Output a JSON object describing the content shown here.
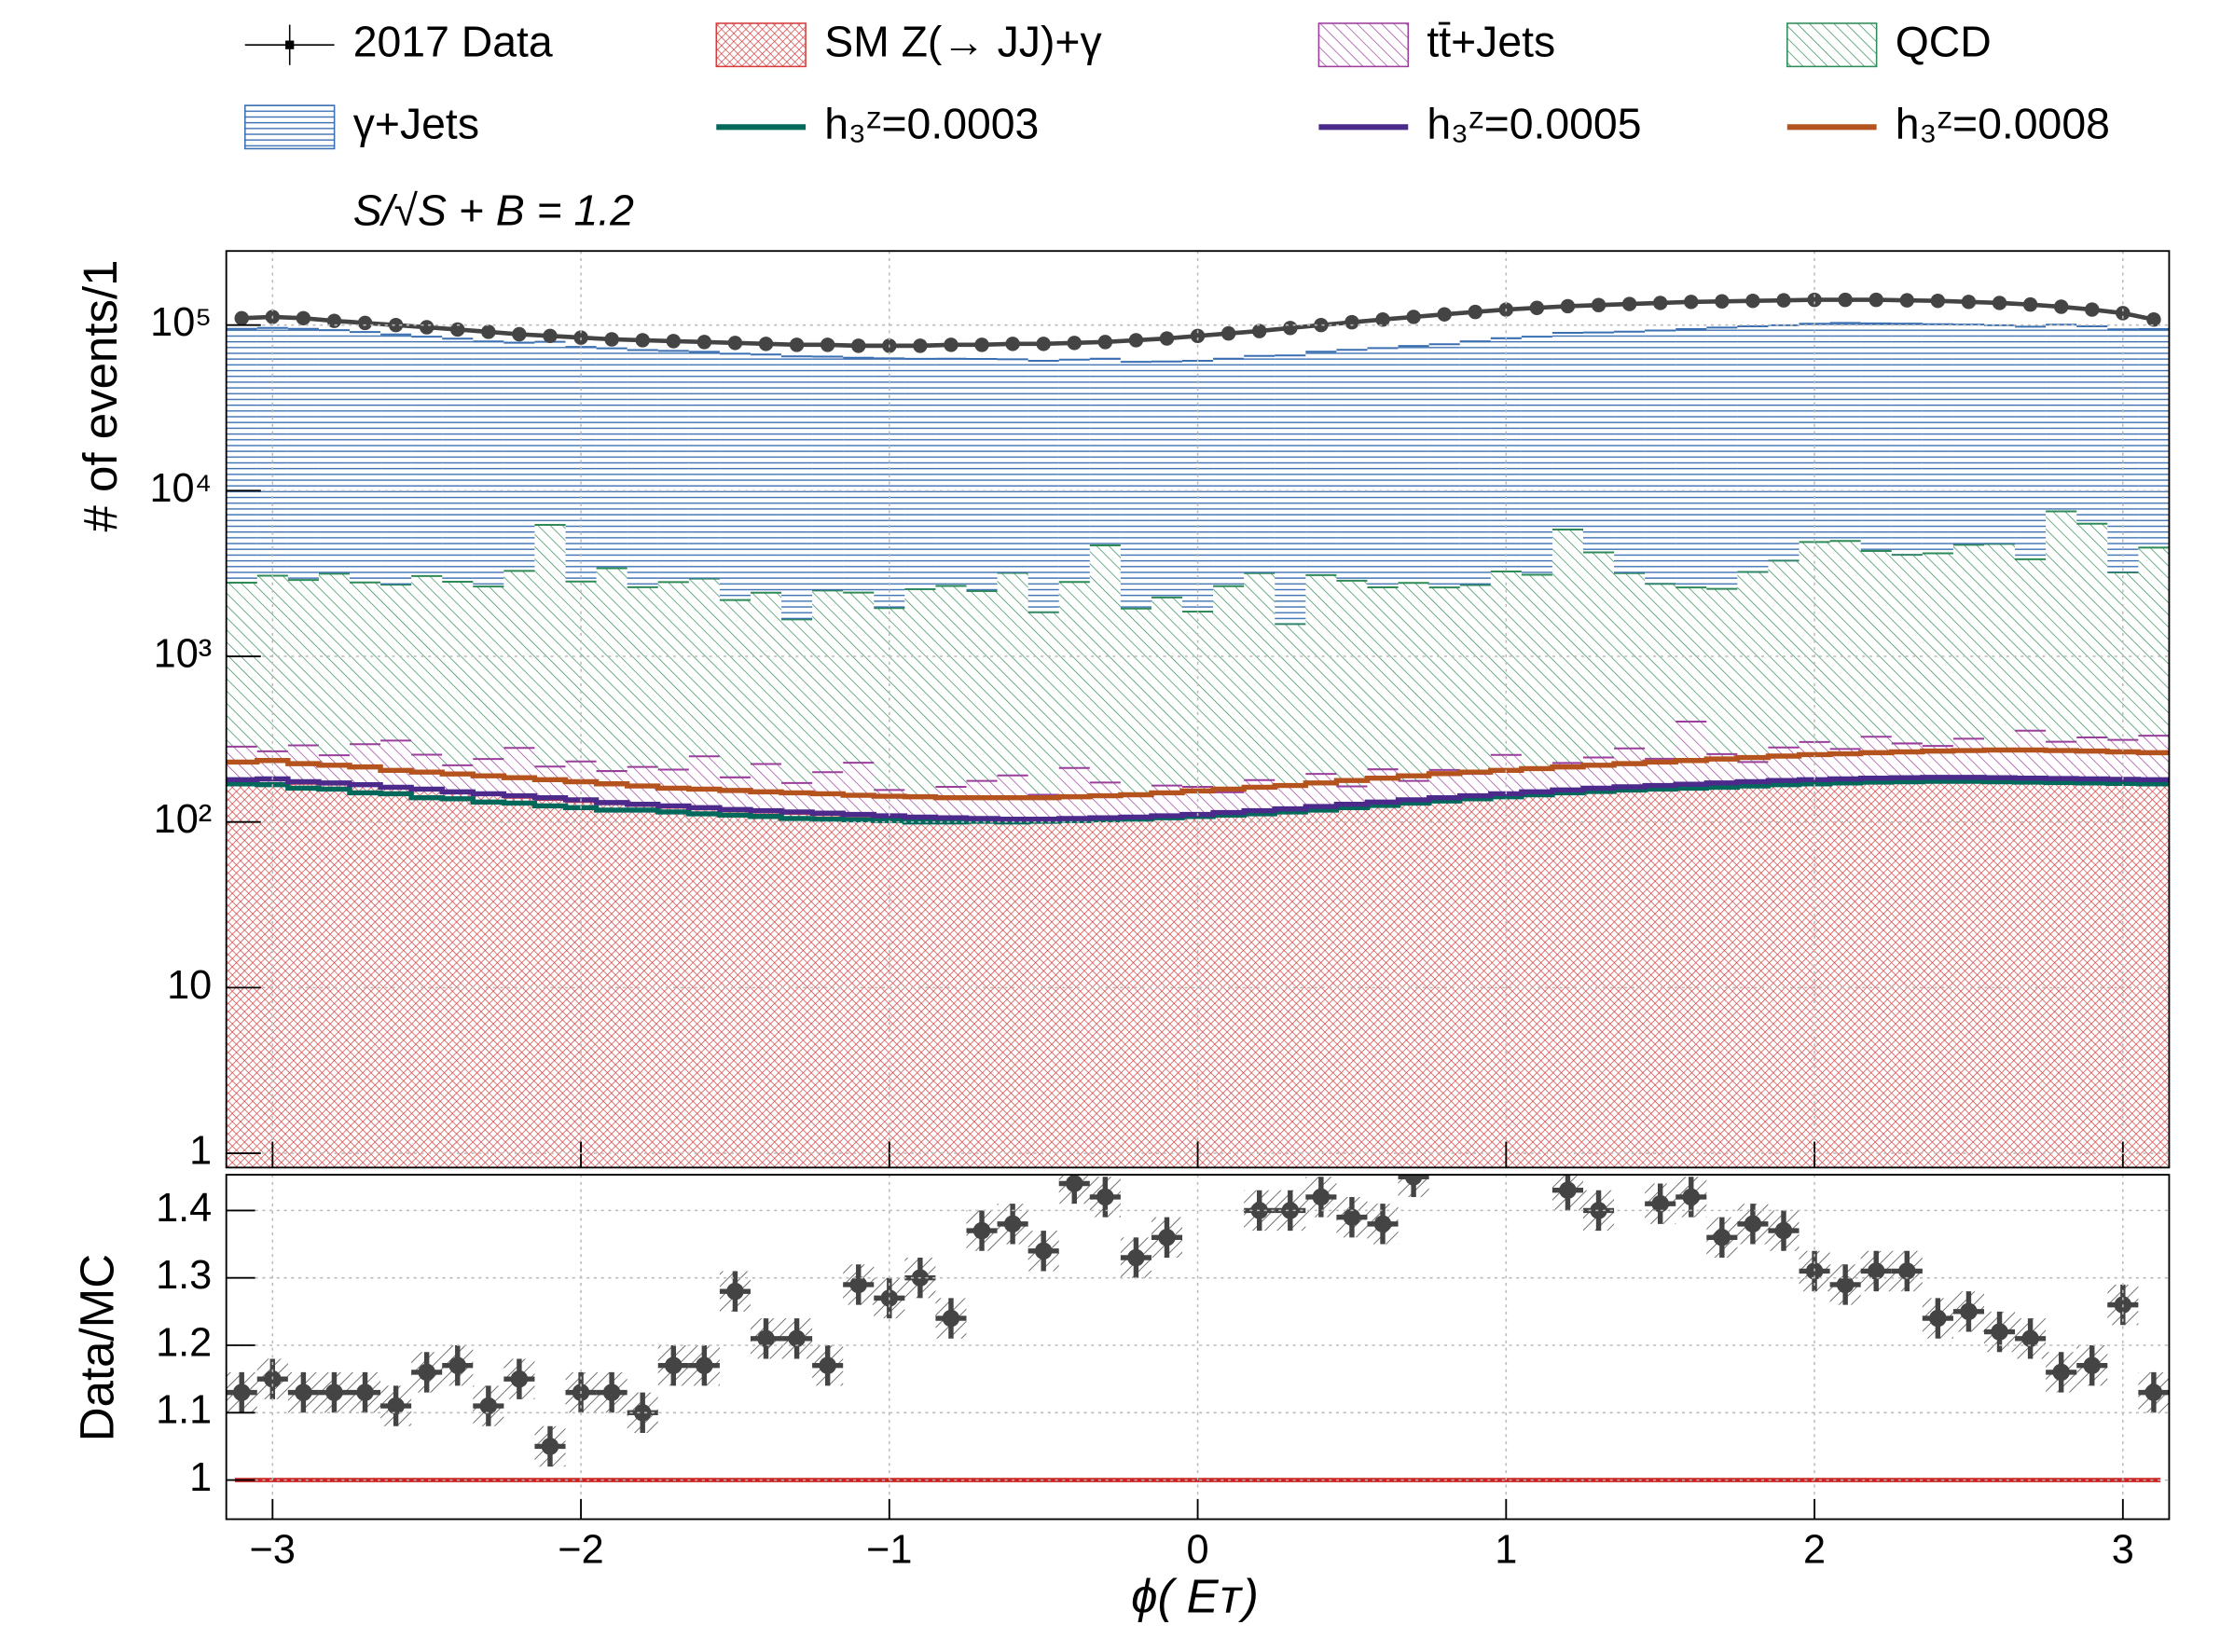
{
  "chart_data": [
    {
      "type": "stacked-histogram",
      "annotation": "S/√S + B = 1.2",
      "ylabel": "# of events/1",
      "log_y": true,
      "grid": true,
      "xlim": [
        -3.15,
        3.15
      ],
      "ylim": [
        0.82,
        280000
      ],
      "yticks": [
        1,
        10,
        {
          "value": 100,
          "label": "10²"
        },
        {
          "value": 1000,
          "label": "10³"
        },
        {
          "value": 10000,
          "label": "10⁴"
        },
        {
          "value": 100000,
          "label": "10⁵"
        }
      ],
      "bins": [
        -3.15,
        -3.05,
        -2.95,
        -2.85,
        -2.75,
        -2.65,
        -2.55,
        -2.45,
        -2.35,
        -2.25,
        -2.15,
        -2.05,
        -1.95,
        -1.85,
        -1.75,
        -1.65,
        -1.55,
        -1.45,
        -1.35,
        -1.25,
        -1.15,
        -1.05,
        -0.95,
        -0.85,
        -0.75,
        -0.65,
        -0.55,
        -0.45,
        -0.35,
        -0.25,
        -0.15,
        -0.05,
        0.05,
        0.15,
        0.25,
        0.35,
        0.45,
        0.55,
        0.65,
        0.75,
        0.85,
        0.95,
        1.05,
        1.15,
        1.25,
        1.35,
        1.45,
        1.55,
        1.65,
        1.75,
        1.85,
        1.95,
        2.05,
        2.15,
        2.25,
        2.35,
        2.45,
        2.55,
        2.65,
        2.75,
        2.85,
        2.95,
        3.05,
        3.15
      ],
      "data": {
        "name": "2017 Data",
        "color": "#444444",
        "values": [
          110000,
          112000,
          110000,
          106000,
          103000,
          100000,
          97000,
          94000,
          91000,
          88000,
          86000,
          84000,
          82000,
          81000,
          80000,
          79000,
          78000,
          77000,
          76000,
          76000,
          75000,
          75000,
          75000,
          76000,
          76000,
          77000,
          77000,
          78000,
          79000,
          81000,
          83000,
          86000,
          89000,
          92000,
          96000,
          100000,
          104000,
          108000,
          112000,
          116000,
          120000,
          124000,
          127000,
          130000,
          132000,
          134000,
          136000,
          138000,
          139000,
          140000,
          141000,
          142000,
          142000,
          142000,
          141000,
          140000,
          138000,
          136000,
          133000,
          129000,
          124000,
          118000,
          108000
        ]
      },
      "series": [
        {
          "name": "SM Z(→ JJ)+γ",
          "color": "#d63c3c",
          "hatch": "cross",
          "values": [
            175,
            172,
            170,
            168,
            165,
            160,
            155,
            150,
            145,
            140,
            136,
            132,
            128,
            125,
            122,
            119,
            116,
            114,
            112,
            110,
            108,
            106,
            104,
            103,
            102,
            101,
            101,
            102,
            103,
            104,
            106,
            108,
            111,
            114,
            117,
            120,
            124,
            128,
            132,
            136,
            140,
            144,
            148,
            152,
            155,
            158,
            161,
            164,
            167,
            170,
            172,
            174,
            176,
            177,
            178,
            178,
            178,
            177,
            176,
            175,
            174,
            173,
            172
          ]
        },
        {
          "name": "tt̄+Jets",
          "color": "#9c3c9c",
          "hatch": "diag",
          "values": [
            110,
            95,
            120,
            85,
            130,
            150,
            100,
            70,
            95,
            140,
            80,
            100,
            75,
            90,
            85,
            130,
            70,
            110,
            60,
            90,
            120,
            50,
            40,
            60,
            75,
            90,
            45,
            110,
            70,
            40,
            60,
            55,
            40,
            65,
            50,
            75,
            40,
            80,
            45,
            70,
            55,
            110,
            60,
            75,
            90,
            120,
            80,
            240,
            90,
            60,
            110,
            130,
            100,
            150,
            120,
            110,
            140,
            95,
            180,
            130,
            150,
            140,
            160
          ]
        },
        {
          "name": "QCD",
          "color": "#2e8b57",
          "hatch": "diag",
          "values": [
            2500,
            2800,
            2600,
            2900,
            2500,
            2400,
            2800,
            2600,
            2400,
            3000,
            6000,
            2600,
            3200,
            2400,
            2600,
            2700,
            2000,
            2200,
            1500,
            2300,
            2200,
            1800,
            2400,
            2500,
            2300,
            3000,
            1700,
            2600,
            4500,
            1800,
            2100,
            1700,
            2500,
            3000,
            1400,
            2900,
            2700,
            2400,
            2600,
            2400,
            2500,
            3000,
            2900,
            5600,
            4000,
            2900,
            2500,
            2200,
            2300,
            3000,
            3500,
            4600,
            4700,
            4000,
            3800,
            3900,
            4400,
            4500,
            3500,
            7200,
            6000,
            2900,
            4200
          ]
        },
        {
          "name": "γ+Jets",
          "color": "#3a6fb2",
          "hatch": "horizontal",
          "values": [
            92000,
            93000,
            92000,
            90000,
            88000,
            85000,
            82000,
            80000,
            77000,
            75000,
            73000,
            71000,
            69000,
            68000,
            67000,
            66000,
            65000,
            64000,
            63000,
            62000,
            61000,
            61000,
            60000,
            60000,
            60000,
            59000,
            59000,
            59000,
            58000,
            58000,
            58000,
            59000,
            60000,
            62000,
            64000,
            66000,
            68000,
            70000,
            72000,
            74000,
            77000,
            80000,
            82000,
            84000,
            86000,
            88000,
            90000,
            92000,
            94000,
            95000,
            96000,
            97000,
            98000,
            98000,
            98000,
            97000,
            96000,
            95000,
            94000,
            93000,
            92000,
            91000,
            90000
          ]
        }
      ],
      "lines": [
        {
          "name": "h₃ᶻ=0.0003",
          "color": "#00695c",
          "values": [
            170,
            168,
            160,
            158,
            150,
            148,
            140,
            138,
            132,
            130,
            125,
            122,
            118,
            118,
            115,
            112,
            110,
            108,
            105,
            104,
            103,
            102,
            100,
            100,
            101,
            100,
            101,
            102,
            103,
            104,
            106,
            108,
            110,
            112,
            115,
            118,
            122,
            126,
            130,
            134,
            138,
            142,
            146,
            150,
            153,
            156,
            158,
            160,
            162,
            165,
            168,
            170,
            172,
            174,
            175,
            176,
            176,
            175,
            174,
            173,
            172,
            171,
            170
          ]
        },
        {
          "name": "h₃ᶻ=0.0005",
          "color": "#4b2a8c",
          "values": [
            180,
            182,
            175,
            172,
            168,
            162,
            158,
            152,
            148,
            144,
            140,
            136,
            131,
            128,
            125,
            122,
            119,
            117,
            115,
            113,
            111,
            109,
            107,
            106,
            105,
            104,
            104,
            105,
            106,
            107,
            109,
            111,
            114,
            117,
            120,
            124,
            128,
            132,
            136,
            140,
            144,
            148,
            152,
            156,
            160,
            163,
            166,
            169,
            172,
            175,
            178,
            180,
            182,
            184,
            185,
            186,
            186,
            185,
            184,
            183,
            182,
            181,
            180
          ]
        },
        {
          "name": "h₃ᶻ=0.0008",
          "color": "#b5531e",
          "values": [
            230,
            235,
            225,
            220,
            215,
            205,
            200,
            195,
            190,
            185,
            180,
            175,
            170,
            165,
            160,
            158,
            155,
            152,
            150,
            148,
            145,
            143,
            142,
            140,
            140,
            140,
            140,
            142,
            144,
            146,
            150,
            154,
            158,
            162,
            166,
            172,
            178,
            184,
            190,
            196,
            200,
            205,
            210,
            215,
            220,
            225,
            230,
            235,
            240,
            245,
            250,
            255,
            258,
            262,
            265,
            268,
            270,
            272,
            272,
            270,
            268,
            265,
            262
          ]
        }
      ]
    },
    {
      "type": "ratio",
      "ylabel": "Data/MC",
      "xlabel": "ϕ(   Eᴛ)",
      "grid": true,
      "xlim": [
        -3.15,
        3.15
      ],
      "ylim": [
        0.942,
        1.453
      ],
      "xticks": [
        {
          "value": -3,
          "label": "−3"
        },
        {
          "value": -2,
          "label": "−2"
        },
        {
          "value": -1,
          "label": "−1"
        },
        0,
        1,
        2,
        3
      ],
      "yticks": [
        1,
        1.1,
        1.2,
        1.3,
        1.4
      ],
      "reference_line": 1,
      "reference_color": "#cc2222",
      "color": "#444444",
      "values": [
        1.13,
        1.15,
        1.13,
        1.13,
        1.13,
        1.11,
        1.16,
        1.17,
        1.11,
        1.15,
        1.05,
        1.13,
        1.13,
        1.1,
        1.17,
        1.17,
        1.28,
        1.21,
        1.21,
        1.17,
        1.29,
        1.27,
        1.3,
        1.24,
        1.37,
        1.38,
        1.34,
        1.44,
        1.42,
        1.33,
        1.36,
        null,
        null,
        1.4,
        1.4,
        1.42,
        1.39,
        1.38,
        1.45,
        null,
        null,
        null,
        null,
        1.43,
        1.4,
        null,
        1.41,
        1.42,
        1.36,
        1.38,
        1.37,
        1.31,
        1.29,
        1.31,
        1.31,
        1.24,
        1.25,
        1.22,
        1.21,
        1.16,
        1.17,
        1.26,
        1.13
      ],
      "errors": [
        0.03,
        0.03,
        0.03,
        0.03,
        0.03,
        0.03,
        0.03,
        0.03,
        0.03,
        0.03,
        0.03,
        0.03,
        0.03,
        0.03,
        0.03,
        0.03,
        0.03,
        0.03,
        0.03,
        0.03,
        0.03,
        0.03,
        0.03,
        0.03,
        0.03,
        0.03,
        0.03,
        0.03,
        0.03,
        0.03,
        0.03,
        null,
        null,
        0.03,
        0.03,
        0.03,
        0.03,
        0.03,
        0.03,
        null,
        null,
        null,
        null,
        0.03,
        0.03,
        null,
        0.03,
        0.03,
        0.03,
        0.03,
        0.03,
        0.03,
        0.03,
        0.03,
        0.03,
        0.03,
        0.03,
        0.03,
        0.03,
        0.03,
        0.03,
        0.03,
        0.03
      ]
    }
  ]
}
